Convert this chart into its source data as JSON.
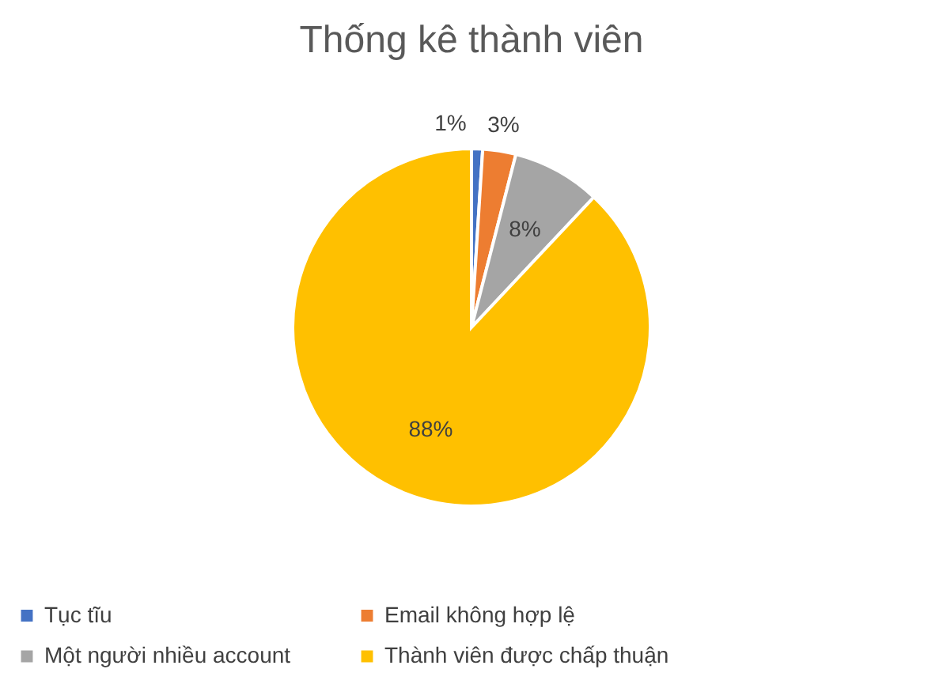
{
  "chart_data": {
    "type": "pie",
    "title": "Thống kê thành viên",
    "categories": [
      "Tục tĩu",
      "Email không hợp lệ",
      "Một người nhiều account",
      "Thành viên được chấp thuận"
    ],
    "values": [
      1,
      3,
      8,
      88
    ],
    "colors": [
      "#4472c4",
      "#ed7d31",
      "#a5a5a5",
      "#ffc000"
    ],
    "value_labels": [
      "1%",
      "3%",
      "8%",
      "88%"
    ],
    "legend": "bottom"
  }
}
